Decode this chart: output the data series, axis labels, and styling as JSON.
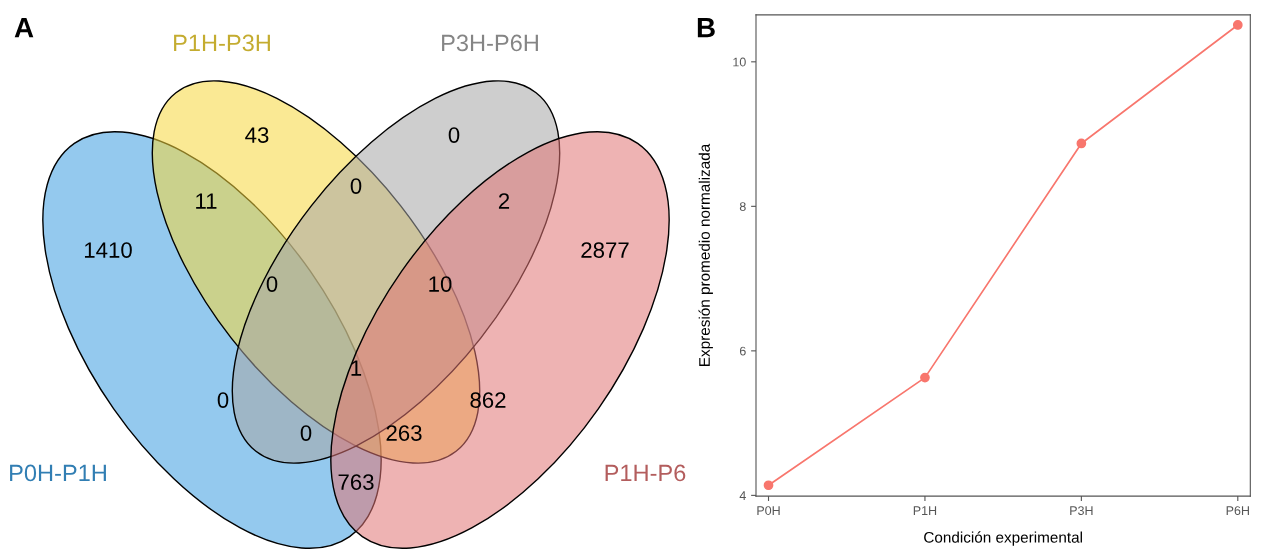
{
  "chart_data": [
    {
      "type": "other",
      "title": "A",
      "categories": [
        "P0H-P1H",
        "P1H-P3H",
        "P3H-P6H",
        "P1H-P6"
      ],
      "colors": [
        "#3d9de0",
        "#f5d73c",
        "#a6a6a6",
        "#e07474"
      ],
      "annotations": [
        "43",
        "0",
        "11",
        "0",
        "2",
        "1410",
        "2877",
        "0",
        "10",
        "1",
        "0",
        "862",
        "0",
        "263",
        "763"
      ]
    },
    {
      "type": "line",
      "title": "B",
      "xlabel": "Condición experimental",
      "ylabel": "Expresión promedio normalizada",
      "categories": [
        "P0H",
        "P1H",
        "P3H",
        "P6H"
      ],
      "series": [
        {
          "color": "#f8766d",
          "values": [
            4.14,
            5.63,
            8.87,
            10.51
          ]
        }
      ],
      "ylim": [
        3.99,
        10.65
      ],
      "yticks": [
        4,
        6,
        8,
        10
      ],
      "marker": "circle",
      "grid": false
    }
  ]
}
